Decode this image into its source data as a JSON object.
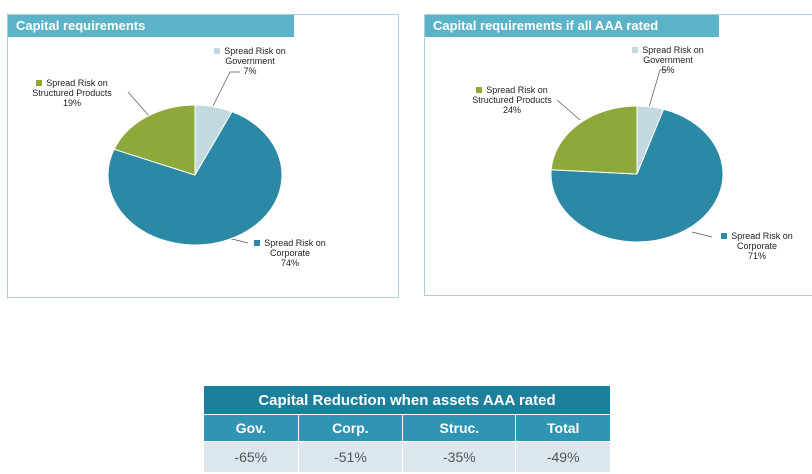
{
  "chart_data": [
    {
      "type": "pie",
      "title": "Capital requirements",
      "categories": [
        "Spread Risk on Government",
        "Spread Risk on Corporate",
        "Spread Risk on Structured Products"
      ],
      "values": [
        7,
        74,
        19
      ],
      "value_labels": [
        "7%",
        "74%",
        "19%"
      ],
      "colors": [
        "#c3d9e0",
        "#2b89a6",
        "#8ea83c"
      ]
    },
    {
      "type": "pie",
      "title": "Capital requirements if all AAA rated",
      "categories": [
        "Spread Risk on Government",
        "Spread Risk on Corporate",
        "Spread Risk on Structured Products"
      ],
      "values": [
        5,
        71,
        24
      ],
      "value_labels": [
        "5%",
        "71%",
        "24%"
      ],
      "colors": [
        "#c3d9e0",
        "#2b89a6",
        "#8ea83c"
      ]
    }
  ],
  "table": {
    "title": "Capital Reduction when assets AAA rated",
    "header": [
      "Gov.",
      "Corp.",
      "Struc.",
      "Total"
    ],
    "rows": [
      [
        "-65%",
        "-51%",
        "-35%",
        "-49%"
      ]
    ]
  }
}
